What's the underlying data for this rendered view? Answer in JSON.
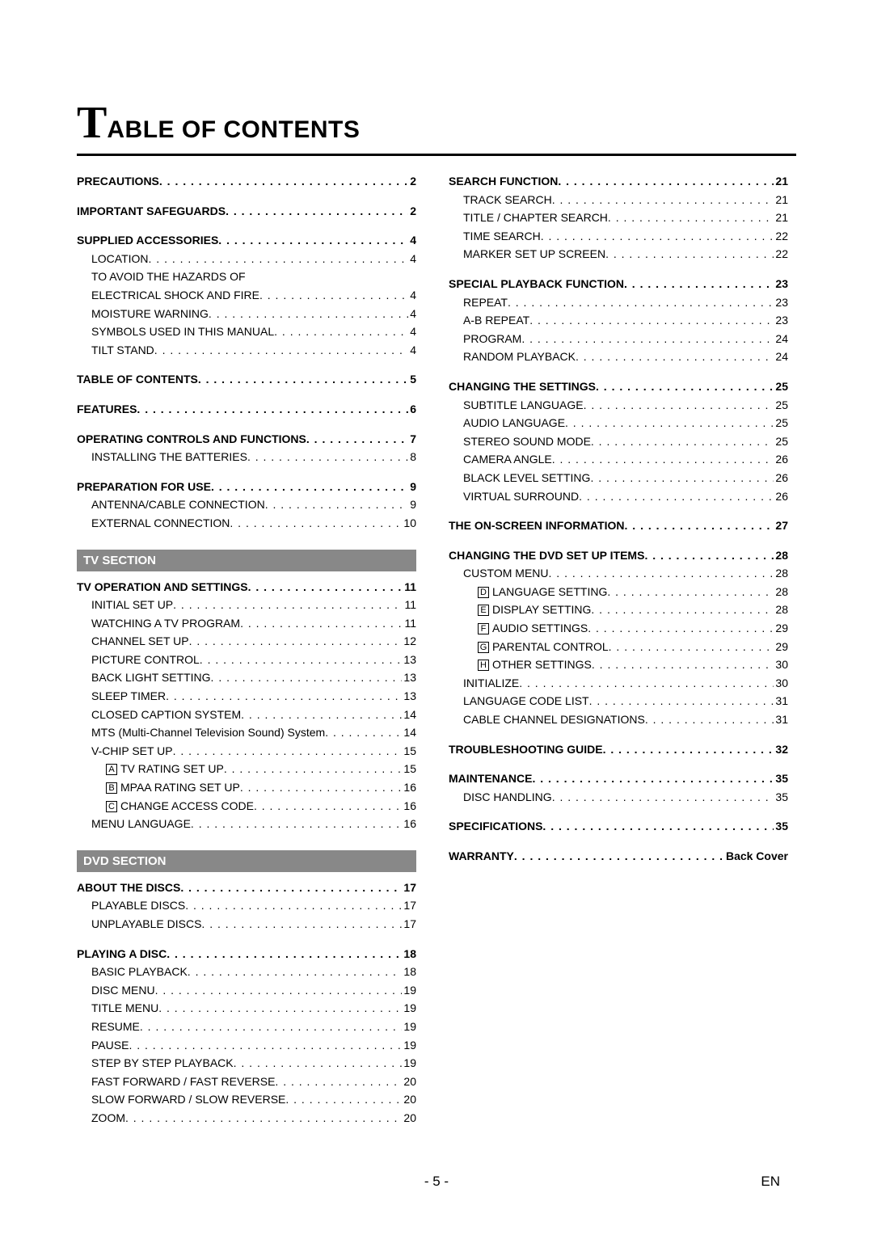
{
  "title_big": "T",
  "title_rest": "ABLE OF CONTENTS",
  "page_number": "- 5 -",
  "lang_code": "EN",
  "section_bars": {
    "tv": "TV SECTION",
    "dvd": "DVD SECTION"
  },
  "left": [
    {
      "label": "PRECAUTIONS",
      "page": "2",
      "bold": true,
      "indent": 0
    },
    {
      "gap": true
    },
    {
      "label": "IMPORTANT SAFEGUARDS",
      "page": "2",
      "bold": true,
      "indent": 0
    },
    {
      "gap": true
    },
    {
      "label": "SUPPLIED ACCESSORIES",
      "page": "4",
      "bold": true,
      "indent": 0
    },
    {
      "label": "LOCATION",
      "page": "4",
      "indent": 1
    },
    {
      "label": "TO AVOID THE HAZARDS OF",
      "noleader": true,
      "indent": 1
    },
    {
      "label": "ELECTRICAL SHOCK AND FIRE",
      "page": "4",
      "indent": 1
    },
    {
      "label": "MOISTURE WARNING",
      "page": "4",
      "indent": 1
    },
    {
      "label": "SYMBOLS USED IN THIS MANUAL",
      "page": "4",
      "indent": 1
    },
    {
      "label": "TILT STAND",
      "page": "4",
      "indent": 1
    },
    {
      "gap": true
    },
    {
      "label": "TABLE OF CONTENTS",
      "page": "5",
      "bold": true,
      "indent": 0
    },
    {
      "gap": true
    },
    {
      "label": "FEATURES",
      "page": "6",
      "bold": true,
      "indent": 0
    },
    {
      "gap": true
    },
    {
      "label": "OPERATING CONTROLS AND FUNCTIONS",
      "page": "7",
      "bold": true,
      "indent": 0
    },
    {
      "label": "INSTALLING THE BATTERIES",
      "page": "8",
      "indent": 1
    },
    {
      "gap": true
    },
    {
      "label": "PREPARATION FOR USE",
      "page": "9",
      "bold": true,
      "indent": 0
    },
    {
      "label": "ANTENNA/CABLE CONNECTION",
      "page": "9",
      "indent": 1
    },
    {
      "label": "EXTERNAL CONNECTION",
      "page": "10",
      "indent": 1
    },
    {
      "bar": "tv"
    },
    {
      "label": "TV OPERATION AND SETTINGS",
      "page": "11",
      "bold": true,
      "indent": 0
    },
    {
      "label": "INITIAL SET UP",
      "page": "11",
      "indent": 1
    },
    {
      "label": "WATCHING A TV PROGRAM",
      "page": "11",
      "indent": 1
    },
    {
      "label": "CHANNEL SET UP",
      "page": "12",
      "indent": 1
    },
    {
      "label": "PICTURE CONTROL",
      "page": "13",
      "indent": 1
    },
    {
      "label": "BACK LIGHT SETTING",
      "page": "13",
      "indent": 1
    },
    {
      "label": "SLEEP TIMER",
      "page": "13",
      "indent": 1
    },
    {
      "label": "CLOSED CAPTION SYSTEM",
      "page": "14",
      "indent": 1
    },
    {
      "label": "MTS (Multi-Channel Television Sound) System",
      "page": "14",
      "indent": 1
    },
    {
      "label": "V-CHIP SET UP",
      "page": "15",
      "indent": 1
    },
    {
      "box": "A",
      "label": "TV RATING SET UP",
      "page": "15",
      "indent": 2
    },
    {
      "box": "B",
      "label": "MPAA RATING SET UP",
      "page": "16",
      "indent": 2
    },
    {
      "box": "C",
      "label": "CHANGE ACCESS CODE",
      "page": "16",
      "indent": 2
    },
    {
      "label": "MENU LANGUAGE",
      "page": "16",
      "indent": 1
    },
    {
      "bar": "dvd"
    },
    {
      "label": "ABOUT THE DISCS",
      "page": "17",
      "bold": true,
      "indent": 0
    },
    {
      "label": "PLAYABLE DISCS",
      "page": "17",
      "indent": 1
    },
    {
      "label": "UNPLAYABLE DISCS",
      "page": "17",
      "indent": 1
    },
    {
      "gap": true
    },
    {
      "label": "PLAYING A DISC",
      "page": "18",
      "bold": true,
      "indent": 0
    },
    {
      "label": "BASIC PLAYBACK",
      "page": "18",
      "indent": 1
    },
    {
      "label": "DISC MENU",
      "page": "19",
      "indent": 1
    },
    {
      "label": "TITLE MENU",
      "page": "19",
      "indent": 1
    },
    {
      "label": "RESUME",
      "page": "19",
      "indent": 1
    },
    {
      "label": "PAUSE",
      "page": "19",
      "indent": 1
    },
    {
      "label": "STEP BY STEP PLAYBACK",
      "page": "19",
      "indent": 1
    },
    {
      "label": "FAST FORWARD / FAST REVERSE",
      "page": "20",
      "indent": 1
    },
    {
      "label": "SLOW FORWARD / SLOW REVERSE",
      "page": "20",
      "indent": 1
    },
    {
      "label": "ZOOM",
      "page": "20",
      "indent": 1
    }
  ],
  "right": [
    {
      "label": "SEARCH FUNCTION",
      "page": "21",
      "bold": true,
      "indent": 0
    },
    {
      "label": "TRACK SEARCH",
      "page": "21",
      "indent": 1
    },
    {
      "label": "TITLE / CHAPTER SEARCH",
      "page": "21",
      "indent": 1
    },
    {
      "label": "TIME SEARCH",
      "page": "22",
      "indent": 1
    },
    {
      "label": "MARKER SET UP SCREEN",
      "page": "22",
      "indent": 1
    },
    {
      "gap": true
    },
    {
      "label": "SPECIAL PLAYBACK FUNCTION",
      "page": "23",
      "bold": true,
      "indent": 0
    },
    {
      "label": "REPEAT",
      "page": "23",
      "indent": 1
    },
    {
      "label": "A-B REPEAT",
      "page": "23",
      "indent": 1
    },
    {
      "label": "PROGRAM",
      "page": "24",
      "indent": 1
    },
    {
      "label": "RANDOM PLAYBACK",
      "page": "24",
      "indent": 1
    },
    {
      "gap": true
    },
    {
      "label": "CHANGING THE SETTINGS",
      "page": "25",
      "bold": true,
      "indent": 0
    },
    {
      "label": "SUBTITLE LANGUAGE",
      "page": "25",
      "indent": 1
    },
    {
      "label": "AUDIO LANGUAGE",
      "page": "25",
      "indent": 1
    },
    {
      "label": "STEREO SOUND MODE",
      "page": "25",
      "indent": 1
    },
    {
      "label": "CAMERA ANGLE",
      "page": "26",
      "indent": 1
    },
    {
      "label": "BLACK LEVEL SETTING",
      "page": "26",
      "indent": 1
    },
    {
      "label": "VIRTUAL SURROUND",
      "page": "26",
      "indent": 1
    },
    {
      "gap": true
    },
    {
      "label": "THE ON-SCREEN INFORMATION",
      "page": "27",
      "bold": true,
      "indent": 0
    },
    {
      "gap": true
    },
    {
      "label": "CHANGING THE DVD SET UP ITEMS",
      "page": "28",
      "bold": true,
      "indent": 0
    },
    {
      "label": "CUSTOM MENU",
      "page": "28",
      "indent": 1
    },
    {
      "box": "D",
      "label": "LANGUAGE SETTING",
      "page": "28",
      "indent": 2
    },
    {
      "box": "E",
      "label": "DISPLAY SETTING",
      "page": "28",
      "indent": 2
    },
    {
      "box": "F",
      "label": "AUDIO SETTINGS",
      "page": "29",
      "indent": 2
    },
    {
      "box": "G",
      "label": "PARENTAL CONTROL",
      "page": "29",
      "indent": 2
    },
    {
      "box": "H",
      "label": "OTHER SETTINGS",
      "page": "30",
      "indent": 2
    },
    {
      "label": "INITIALIZE",
      "page": "30",
      "indent": 1
    },
    {
      "label": "LANGUAGE CODE LIST",
      "page": "31",
      "indent": 1
    },
    {
      "label": "CABLE CHANNEL DESIGNATIONS",
      "page": "31",
      "indent": 1
    },
    {
      "gap": true
    },
    {
      "label": "TROUBLESHOOTING GUIDE",
      "page": "32",
      "bold": true,
      "indent": 0
    },
    {
      "gap": true
    },
    {
      "label": "MAINTENANCE",
      "page": "35",
      "bold": true,
      "indent": 0
    },
    {
      "label": "DISC HANDLING",
      "page": "35",
      "indent": 1
    },
    {
      "gap": true
    },
    {
      "label": "SPECIFICATIONS",
      "page": "35",
      "bold": true,
      "indent": 0
    },
    {
      "gap": true
    },
    {
      "label": "WARRANTY",
      "page": "Back Cover",
      "bold": true,
      "indent": 0
    }
  ]
}
